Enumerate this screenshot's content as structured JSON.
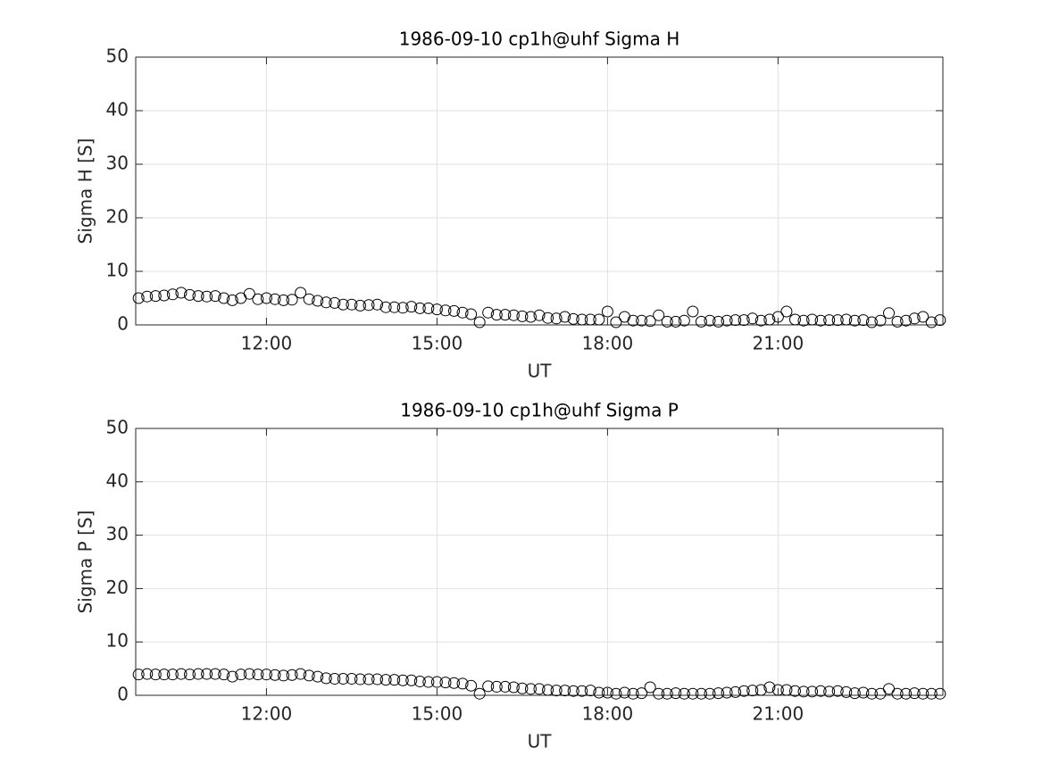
{
  "chart_data": [
    {
      "type": "scatter",
      "title": "1986-09-10  cp1h@uhf Sigma H",
      "x_label": "UT",
      "y_label": "Sigma H [S]",
      "color": "#000000",
      "grid": true,
      "xlim": [
        9.7,
        23.9
      ],
      "xticks": [
        {
          "value": 12,
          "label": "12:00"
        },
        {
          "value": 15,
          "label": "15:00"
        },
        {
          "value": 18,
          "label": "18:00"
        },
        {
          "value": 21,
          "label": "21:00"
        }
      ],
      "ylim": [
        0,
        50
      ],
      "yticks": [
        0,
        10,
        20,
        30,
        40,
        50
      ],
      "x": [
        9.75,
        9.9,
        10.05,
        10.2,
        10.35,
        10.5,
        10.65,
        10.8,
        10.95,
        11.1,
        11.25,
        11.4,
        11.55,
        11.7,
        11.85,
        12,
        12.15,
        12.3,
        12.45,
        12.6,
        12.75,
        12.9,
        13.05,
        13.2,
        13.35,
        13.5,
        13.65,
        13.8,
        13.95,
        14.1,
        14.25,
        14.4,
        14.55,
        14.7,
        14.85,
        15,
        15.15,
        15.3,
        15.45,
        15.6,
        15.75,
        15.9,
        16.05,
        16.2,
        16.35,
        16.5,
        16.65,
        16.8,
        16.95,
        17.1,
        17.25,
        17.4,
        17.55,
        17.7,
        17.85,
        18,
        18.15,
        18.3,
        18.45,
        18.6,
        18.75,
        18.9,
        19.05,
        19.2,
        19.35,
        19.5,
        19.65,
        19.8,
        19.95,
        20.1,
        20.25,
        20.4,
        20.55,
        20.7,
        20.85,
        21,
        21.15,
        21.3,
        21.45,
        21.6,
        21.75,
        21.9,
        22.05,
        22.2,
        22.35,
        22.5,
        22.65,
        22.8,
        22.95,
        23.1,
        23.25,
        23.4,
        23.55,
        23.7,
        23.85
      ],
      "values": [
        5,
        5.3,
        5.4,
        5.5,
        5.7,
        6,
        5.6,
        5.4,
        5.3,
        5.4,
        5,
        4.6,
        5,
        5.8,
        4.8,
        5,
        4.8,
        4.6,
        4.7,
        6,
        4.8,
        4.5,
        4.2,
        4.1,
        3.8,
        3.8,
        3.6,
        3.7,
        3.8,
        3.3,
        3.3,
        3.2,
        3.4,
        3.1,
        3.1,
        2.9,
        2.7,
        2.6,
        2.3,
        2,
        0.5,
        2.3,
        1.9,
        1.9,
        1.8,
        1.6,
        1.5,
        1.8,
        1.3,
        1.2,
        1.5,
        1.1,
        1,
        1,
        1,
        2.5,
        0.5,
        1.5,
        0.8,
        0.8,
        0.7,
        1.8,
        0.6,
        0.6,
        0.8,
        2.5,
        0.6,
        0.8,
        0.6,
        0.8,
        0.9,
        0.9,
        1.2,
        0.8,
        1,
        1.5,
        2.5,
        1,
        0.8,
        1,
        0.8,
        0.9,
        0.9,
        1,
        0.8,
        0.9,
        0.5,
        0.8,
        2.2,
        0.6,
        0.8,
        1.2,
        1.5,
        0.5,
        0.9
      ]
    },
    {
      "type": "scatter",
      "title": "1986-09-10  cp1h@uhf Sigma P",
      "x_label": "UT",
      "y_label": "Sigma P [S]",
      "color": "#000000",
      "grid": true,
      "xlim": [
        9.7,
        23.9
      ],
      "xticks": [
        {
          "value": 12,
          "label": "12:00"
        },
        {
          "value": 15,
          "label": "15:00"
        },
        {
          "value": 18,
          "label": "18:00"
        },
        {
          "value": 21,
          "label": "21:00"
        }
      ],
      "ylim": [
        0,
        50
      ],
      "yticks": [
        0,
        10,
        20,
        30,
        40,
        50
      ],
      "x": [
        9.75,
        9.9,
        10.05,
        10.2,
        10.35,
        10.5,
        10.65,
        10.8,
        10.95,
        11.1,
        11.25,
        11.4,
        11.55,
        11.7,
        11.85,
        12,
        12.15,
        12.3,
        12.45,
        12.6,
        12.75,
        12.9,
        13.05,
        13.2,
        13.35,
        13.5,
        13.65,
        13.8,
        13.95,
        14.1,
        14.25,
        14.4,
        14.55,
        14.7,
        14.85,
        15,
        15.15,
        15.3,
        15.45,
        15.6,
        15.75,
        15.9,
        16.05,
        16.2,
        16.35,
        16.5,
        16.65,
        16.8,
        16.95,
        17.1,
        17.25,
        17.4,
        17.55,
        17.7,
        17.85,
        18,
        18.15,
        18.3,
        18.45,
        18.6,
        18.75,
        18.9,
        19.05,
        19.2,
        19.35,
        19.5,
        19.65,
        19.8,
        19.95,
        20.1,
        20.25,
        20.4,
        20.55,
        20.7,
        20.85,
        21,
        21.15,
        21.3,
        21.45,
        21.6,
        21.75,
        21.9,
        22.05,
        22.2,
        22.35,
        22.5,
        22.65,
        22.8,
        22.95,
        23.1,
        23.25,
        23.4,
        23.55,
        23.7,
        23.85
      ],
      "values": [
        3.9,
        4,
        3.9,
        3.9,
        3.9,
        4,
        3.9,
        4,
        4,
        4,
        3.9,
        3.5,
        3.9,
        4,
        3.9,
        3.9,
        3.8,
        3.7,
        3.8,
        4,
        3.7,
        3.5,
        3.2,
        3.1,
        3.1,
        3.1,
        3,
        3,
        3,
        2.9,
        2.9,
        2.8,
        2.8,
        2.6,
        2.5,
        2.5,
        2.4,
        2.3,
        2.2,
        1.8,
        0.3,
        1.7,
        1.6,
        1.6,
        1.5,
        1.3,
        1.2,
        1.2,
        1,
        0.9,
        0.9,
        0.8,
        0.8,
        0.9,
        0.5,
        0.5,
        0.3,
        0.5,
        0.3,
        0.4,
        1.5,
        0.3,
        0.3,
        0.4,
        0.3,
        0.3,
        0.3,
        0.3,
        0.4,
        0.5,
        0.6,
        0.8,
        0.9,
        1,
        1.5,
        1,
        1,
        0.8,
        0.7,
        0.7,
        0.8,
        0.7,
        0.8,
        0.6,
        0.4,
        0.5,
        0.3,
        0.3,
        1.2,
        0.3,
        0.3,
        0.4,
        0.3,
        0.3,
        0.3
      ]
    }
  ]
}
